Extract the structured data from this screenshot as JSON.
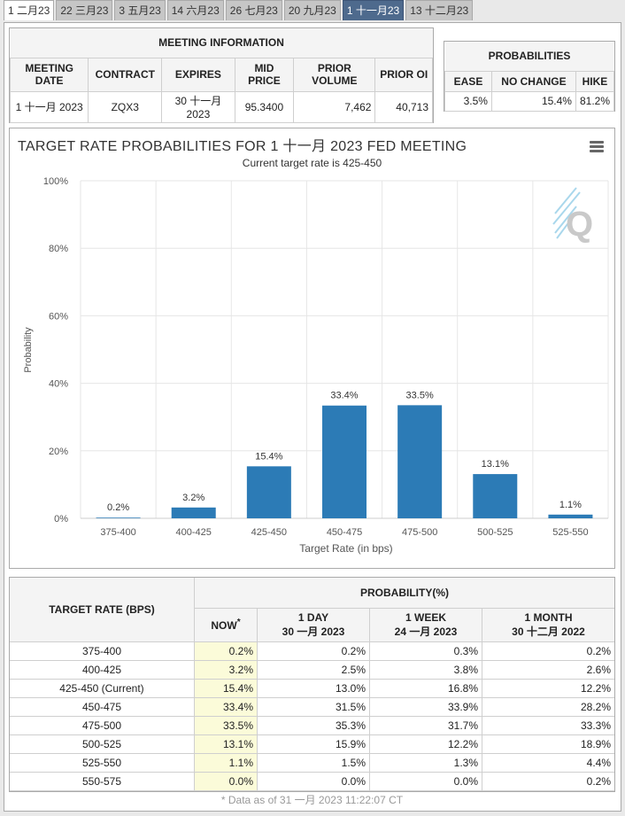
{
  "tabs": [
    "1 二月23",
    "22 三月23",
    "3 五月23",
    "14 六月23",
    "26 七月23",
    "20 九月23",
    "1 十一月23",
    "13 十二月23"
  ],
  "active_tab_index": 6,
  "meeting_info": {
    "title": "MEETING INFORMATION",
    "headers": [
      "MEETING DATE",
      "CONTRACT",
      "EXPIRES",
      "MID PRICE",
      "PRIOR VOLUME",
      "PRIOR OI"
    ],
    "row": [
      "1 十一月 2023",
      "ZQX3",
      "30 十一月 2023",
      "95.3400",
      "7,462",
      "40,713"
    ]
  },
  "probabilities": {
    "title": "PROBABILITIES",
    "headers": [
      "EASE",
      "NO CHANGE",
      "HIKE"
    ],
    "row": [
      "3.5%",
      "15.4%",
      "81.2%"
    ]
  },
  "chart": {
    "title": "TARGET RATE PROBABILITIES FOR 1 十一月 2023 FED MEETING",
    "subtitle": "Current target rate is 425-450",
    "menu_icon": "hamburger-menu-icon",
    "watermark_icon": "cme-q-logo-icon"
  },
  "chart_data": {
    "type": "bar",
    "categories": [
      "375-400",
      "400-425",
      "425-450",
      "450-475",
      "475-500",
      "500-525",
      "525-550"
    ],
    "values": [
      0.2,
      3.2,
      15.4,
      33.4,
      33.5,
      13.1,
      1.1
    ],
    "data_labels": [
      "0.2%",
      "3.2%",
      "15.4%",
      "33.4%",
      "33.5%",
      "13.1%",
      "1.1%"
    ],
    "xlabel": "Target Rate (in bps)",
    "ylabel": "Probability",
    "ylim": [
      0,
      100
    ],
    "yticks": [
      "0%",
      "20%",
      "40%",
      "60%",
      "80%",
      "100%"
    ],
    "bar_color": "#2c7bb6",
    "grid": true
  },
  "bottom_table": {
    "col1_header": "TARGET RATE (BPS)",
    "group_header": "PROBABILITY(%)",
    "now_label": "NOW",
    "now_marker": "*",
    "cols": [
      {
        "line1": "1 DAY",
        "line2": "30 一月 2023"
      },
      {
        "line1": "1 WEEK",
        "line2": "24 一月 2023"
      },
      {
        "line1": "1 MONTH",
        "line2": "30 十二月 2022"
      }
    ],
    "rows": [
      [
        "375-400",
        "0.2%",
        "0.2%",
        "0.3%",
        "0.2%"
      ],
      [
        "400-425",
        "3.2%",
        "2.5%",
        "3.8%",
        "2.6%"
      ],
      [
        "425-450 (Current)",
        "15.4%",
        "13.0%",
        "16.8%",
        "12.2%"
      ],
      [
        "450-475",
        "33.4%",
        "31.5%",
        "33.9%",
        "28.2%"
      ],
      [
        "475-500",
        "33.5%",
        "35.3%",
        "31.7%",
        "33.3%"
      ],
      [
        "500-525",
        "13.1%",
        "15.9%",
        "12.2%",
        "18.9%"
      ],
      [
        "525-550",
        "1.1%",
        "1.5%",
        "1.3%",
        "4.4%"
      ],
      [
        "550-575",
        "0.0%",
        "0.0%",
        "0.0%",
        "0.2%"
      ]
    ],
    "footnote": "* Data as of 31 一月 2023 11:22:07 CT"
  }
}
